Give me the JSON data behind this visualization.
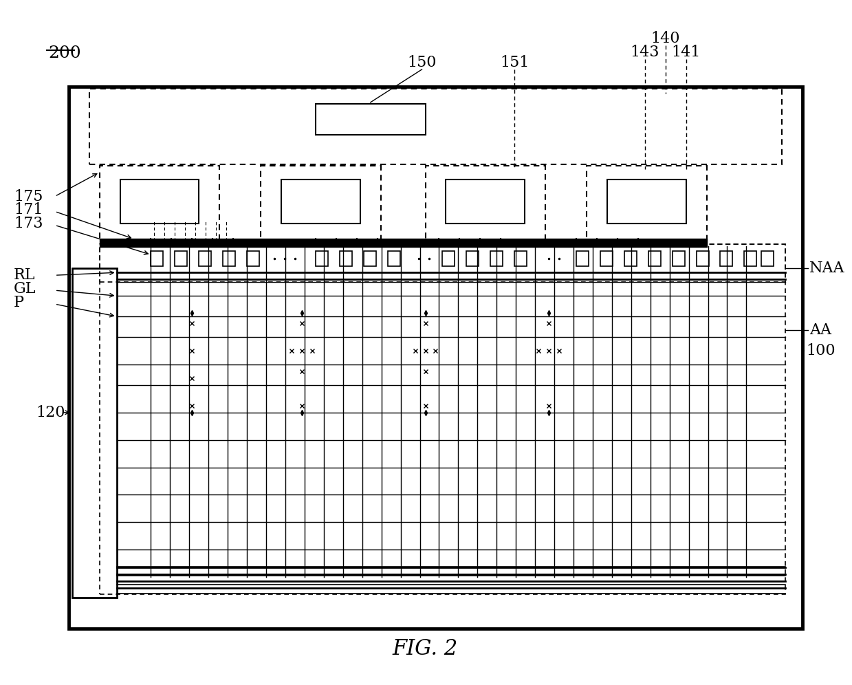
{
  "fig_label": "FIG. 2",
  "ref_200": "200",
  "ref_100": "100",
  "ref_120": "120",
  "ref_140": "140",
  "ref_141": "141",
  "ref_143": "143",
  "ref_150": "150",
  "ref_151": "151",
  "ref_171": "171",
  "ref_173": "173",
  "ref_175": "175",
  "ref_RL": "RL",
  "ref_GL": "GL",
  "ref_P": "P",
  "ref_NAA": "NAA",
  "ref_AA": "AA",
  "bg_color": "#ffffff",
  "line_color": "#000000"
}
